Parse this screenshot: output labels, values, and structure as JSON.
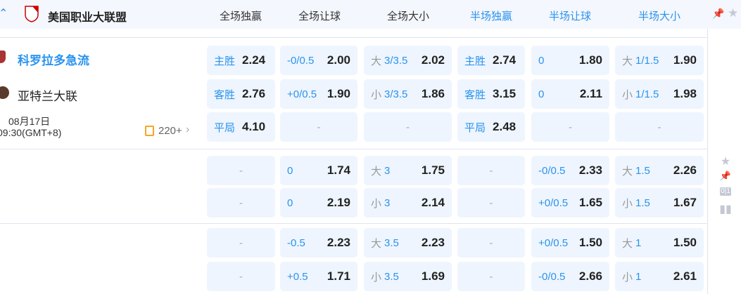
{
  "league": {
    "name": "美国职业大联盟"
  },
  "columns": [
    "全场独赢",
    "全场让球",
    "全场大小",
    "半场独赢",
    "半场让球",
    "半场大小"
  ],
  "columns_active": [
    false,
    false,
    false,
    true,
    true,
    true
  ],
  "match": {
    "home": "科罗拉多急流",
    "away": "亚特兰大联",
    "date": "08月17日",
    "time": "09:30(GMT+8)",
    "markets_count": "220+"
  },
  "groups": [
    [
      [
        {
          "l": "主胜",
          "o": "2.24"
        },
        {
          "l": "-0/0.5",
          "o": "2.00"
        },
        {
          "p": "大",
          "l": "3/3.5",
          "o": "2.02"
        },
        {
          "l": "主胜",
          "o": "2.74"
        },
        {
          "l": "0",
          "o": "1.80"
        },
        {
          "p": "大",
          "l": "1/1.5",
          "o": "1.90"
        }
      ],
      [
        {
          "l": "客胜",
          "o": "2.76"
        },
        {
          "l": "+0/0.5",
          "o": "1.90"
        },
        {
          "p": "小",
          "l": "3/3.5",
          "o": "1.86"
        },
        {
          "l": "客胜",
          "o": "3.15"
        },
        {
          "l": "0",
          "o": "2.11"
        },
        {
          "p": "小",
          "l": "1/1.5",
          "o": "1.98"
        }
      ],
      [
        {
          "l": "平局",
          "o": "4.10"
        },
        {
          "d": "-"
        },
        {
          "d": "-"
        },
        {
          "l": "平局",
          "o": "2.48"
        },
        {
          "d": "-"
        },
        {
          "d": "-"
        }
      ]
    ],
    [
      [
        {
          "d": "-"
        },
        {
          "l": "0",
          "o": "1.74"
        },
        {
          "p": "大",
          "l": "3",
          "o": "1.75"
        },
        {
          "d": "-"
        },
        {
          "l": "-0/0.5",
          "o": "2.33"
        },
        {
          "p": "大",
          "l": "1.5",
          "o": "2.26"
        }
      ],
      [
        {
          "d": "-"
        },
        {
          "l": "0",
          "o": "2.19"
        },
        {
          "p": "小",
          "l": "3",
          "o": "2.14"
        },
        {
          "d": "-"
        },
        {
          "l": "+0/0.5",
          "o": "1.65"
        },
        {
          "p": "小",
          "l": "1.5",
          "o": "1.67"
        }
      ]
    ],
    [
      [
        {
          "d": "-"
        },
        {
          "l": "-0.5",
          "o": "2.23"
        },
        {
          "p": "大",
          "l": "3.5",
          "o": "2.23"
        },
        {
          "d": "-"
        },
        {
          "l": "+0/0.5",
          "o": "1.50"
        },
        {
          "p": "大",
          "l": "1",
          "o": "1.50"
        }
      ],
      [
        {
          "d": "-"
        },
        {
          "l": "+0.5",
          "o": "1.71"
        },
        {
          "p": "小",
          "l": "3.5",
          "o": "1.69"
        },
        {
          "d": "-"
        },
        {
          "l": "-0/0.5",
          "o": "2.66"
        },
        {
          "p": "小",
          "l": "1",
          "o": "2.61"
        }
      ]
    ]
  ],
  "side_icons": [
    "star-icon",
    "pin-icon",
    "score-icon",
    "stats-icon"
  ],
  "colors": {
    "accent": "#2a93ee",
    "cell_bg": "#eef5fe",
    "header_bg": "#f4f7fd"
  }
}
